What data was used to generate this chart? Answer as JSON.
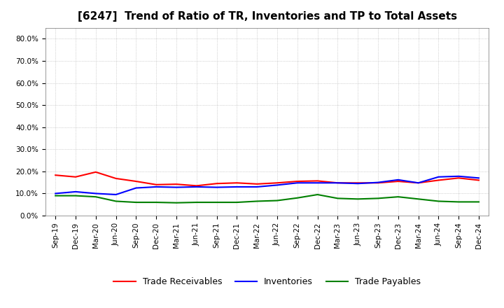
{
  "title": "[6247]  Trend of Ratio of TR, Inventories and TP to Total Assets",
  "x_labels": [
    "Sep-19",
    "Dec-19",
    "Mar-20",
    "Jun-20",
    "Sep-20",
    "Dec-20",
    "Mar-21",
    "Jun-21",
    "Sep-21",
    "Dec-21",
    "Mar-22",
    "Jun-22",
    "Sep-22",
    "Dec-22",
    "Mar-23",
    "Jun-23",
    "Sep-23",
    "Dec-23",
    "Mar-24",
    "Jun-24",
    "Sep-24",
    "Dec-24"
  ],
  "trade_receivables": [
    0.183,
    0.175,
    0.197,
    0.168,
    0.155,
    0.14,
    0.142,
    0.135,
    0.145,
    0.148,
    0.143,
    0.148,
    0.155,
    0.157,
    0.148,
    0.148,
    0.148,
    0.155,
    0.148,
    0.16,
    0.17,
    0.16
  ],
  "inventories": [
    0.1,
    0.108,
    0.1,
    0.095,
    0.125,
    0.13,
    0.128,
    0.13,
    0.128,
    0.13,
    0.13,
    0.138,
    0.148,
    0.148,
    0.148,
    0.145,
    0.15,
    0.162,
    0.148,
    0.175,
    0.178,
    0.17
  ],
  "trade_payables": [
    0.09,
    0.09,
    0.085,
    0.065,
    0.06,
    0.06,
    0.058,
    0.06,
    0.06,
    0.06,
    0.065,
    0.068,
    0.08,
    0.095,
    0.078,
    0.075,
    0.078,
    0.085,
    0.075,
    0.065,
    0.062,
    0.062
  ],
  "line_colors": {
    "trade_receivables": "#ff0000",
    "inventories": "#0000ff",
    "trade_payables": "#008000"
  },
  "legend_labels": [
    "Trade Receivables",
    "Inventories",
    "Trade Payables"
  ],
  "ylim": [
    0.0,
    0.85
  ],
  "yticks": [
    0.0,
    0.1,
    0.2,
    0.3,
    0.4,
    0.5,
    0.6,
    0.7,
    0.8
  ],
  "background_color": "#ffffff",
  "grid_color": "#b0b0b0",
  "title_fontsize": 11,
  "tick_fontsize": 7.5,
  "legend_fontsize": 9
}
